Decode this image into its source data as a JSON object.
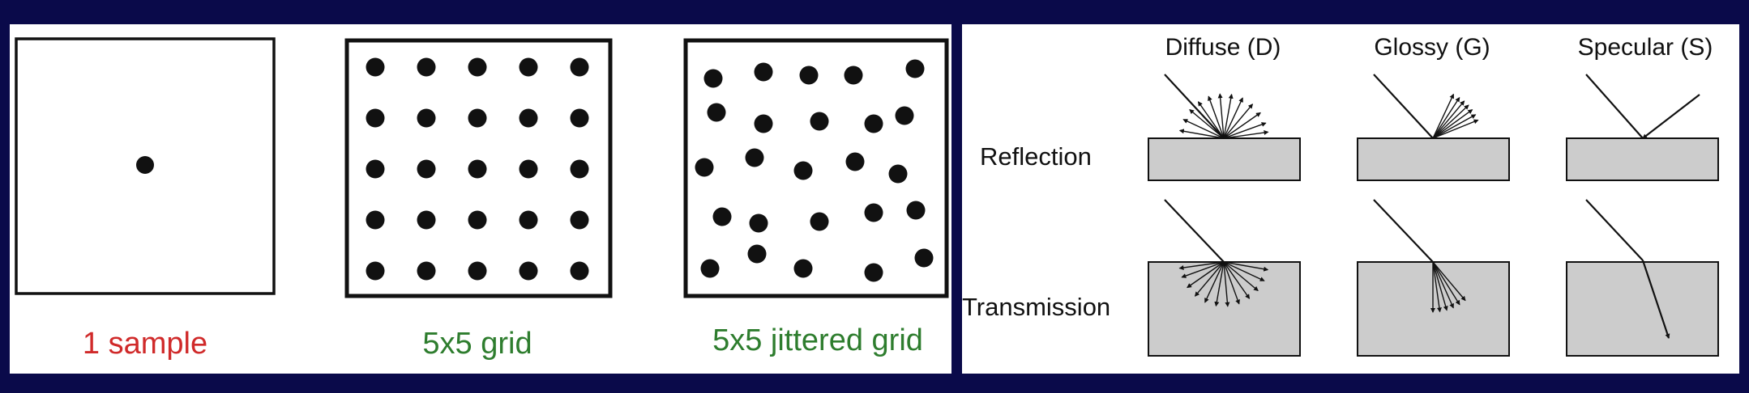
{
  "sampling": {
    "captions": [
      {
        "text": "1 sample",
        "color": "#d02a2a"
      },
      {
        "text": "5x5 grid",
        "color": "#2e7d2e"
      },
      {
        "text": "5x5 jittered grid",
        "color": "#2e7d2e"
      }
    ]
  },
  "scattering": {
    "columns": [
      "Diffuse (D)",
      "Glossy (G)",
      "Specular (S)"
    ],
    "rows": [
      "Reflection",
      "Transmission"
    ]
  },
  "colors": {
    "background": "#0a0a4a",
    "dot": "#111111",
    "surface_fill": "#cccccc"
  }
}
